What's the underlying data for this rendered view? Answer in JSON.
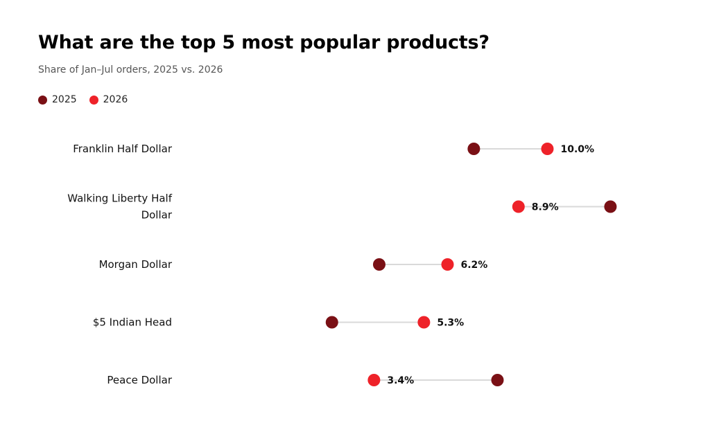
{
  "chart_data": {
    "type": "dumbbell",
    "title": "What are the top 5 most popular products?",
    "subtitle": "Share of Jan–Jul orders, 2025 vs. 2026",
    "legend": [
      {
        "name": "2025",
        "color": "#7a1015"
      },
      {
        "name": "2026",
        "color": "#ee2229"
      }
    ],
    "categories": [
      {
        "label": [
          "Franklin Half Dollar"
        ],
        "v2025": 7.2,
        "v2026": 10.0,
        "value_label": "10.0%"
      },
      {
        "label": [
          "Walking Liberty Half",
          "Dollar"
        ],
        "v2025": 12.4,
        "v2026": 8.9,
        "value_label": "8.9%"
      },
      {
        "label": [
          "Morgan Dollar"
        ],
        "v2025": 3.6,
        "v2026": 6.2,
        "value_label": "6.2%"
      },
      {
        "label": [
          "$5 Indian Head"
        ],
        "v2025": 1.8,
        "v2026": 5.3,
        "value_label": "5.3%"
      },
      {
        "label": [
          "Peace Dollar"
        ],
        "v2025": 8.1,
        "v2026": 3.4,
        "value_label": "3.4%"
      }
    ],
    "xlim": [
      -4.5,
      14.5
    ],
    "grid": false
  }
}
